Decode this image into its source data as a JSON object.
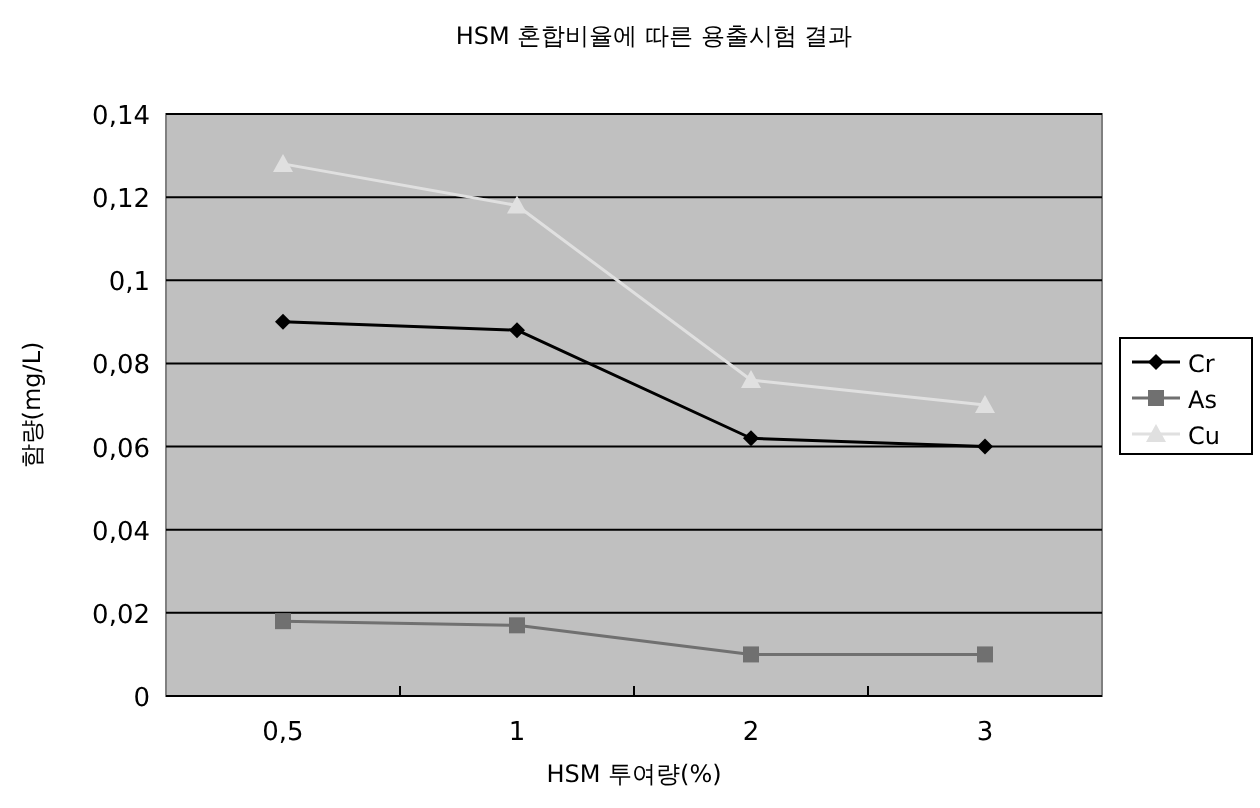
{
  "chart_data": {
    "type": "line",
    "title": "HSM 혼합비율에 따른 용출시험 결과",
    "xlabel": "HSM 투여량(%)",
    "ylabel": "함량(mg/L)",
    "categories": [
      "0,5",
      "1",
      "2",
      "3"
    ],
    "series": [
      {
        "name": "Cr",
        "color": "#000000",
        "marker": "diamond",
        "values": [
          0.09,
          0.088,
          0.062,
          0.06
        ]
      },
      {
        "name": "As",
        "color": "#707070",
        "marker": "square",
        "values": [
          0.018,
          0.017,
          0.01,
          0.01
        ]
      },
      {
        "name": "Cu",
        "color": "#e0e0e0",
        "marker": "triangle",
        "values": [
          0.128,
          0.118,
          0.076,
          0.07
        ]
      }
    ],
    "ylim": [
      0,
      0.14
    ],
    "yticks": [
      0,
      {
        "value": 0.02,
        "label": "0,02"
      },
      {
        "value": 0.04,
        "label": "0,04"
      },
      {
        "value": 0.06,
        "label": "0,06"
      },
      {
        "value": 0.08,
        "label": "0,08"
      },
      {
        "value": 0.1,
        "label": "0,1"
      },
      {
        "value": 0.12,
        "label": "0,12"
      },
      {
        "value": 0.14,
        "label": "0,14"
      }
    ],
    "grid": "y",
    "legend": "right"
  }
}
